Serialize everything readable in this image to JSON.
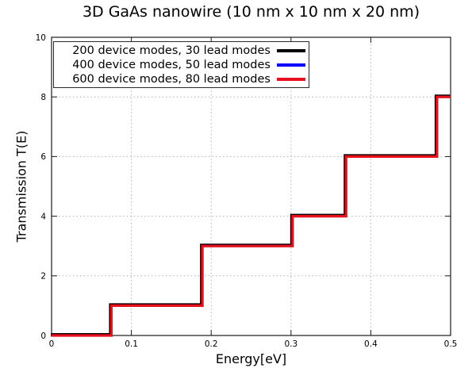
{
  "chart_data": {
    "type": "line",
    "line_shape": "step-staircase",
    "title": "3D GaAs nanowire (10 nm x 10 nm x 20 nm)",
    "xlabel": "Energy[eV]",
    "ylabel": "Transmission T(E)",
    "xlim": [
      0,
      0.5
    ],
    "ylim": [
      0,
      10
    ],
    "xticks": {
      "values": [
        0,
        0.1,
        0.2,
        0.3,
        0.4,
        0.5
      ],
      "labels": [
        "0",
        "0.1",
        "0.2",
        "0.3",
        "0.4",
        "0.5"
      ]
    },
    "yticks": {
      "values": [
        0,
        2,
        4,
        6,
        8,
        10
      ],
      "labels": [
        "0",
        "2",
        "4",
        "6",
        "8",
        "10"
      ]
    },
    "grid": "dotted, at major ticks, mirrored tick marks on all four borders",
    "legend_position": "top-left-inside",
    "overlap_note": "All three series coincide exactly on the same staircase; red is drawn on top.",
    "steps": [
      {
        "energy_eV": 0.075,
        "T_after": 1
      },
      {
        "energy_eV": 0.189,
        "T_after": 3
      },
      {
        "energy_eV": 0.302,
        "T_after": 4
      },
      {
        "energy_eV": 0.369,
        "T_after": 6
      },
      {
        "energy_eV": 0.483,
        "T_after": 8
      }
    ],
    "series": [
      {
        "name": "200 device modes, 30 lead modes",
        "color": "#000000",
        "x": [
          0,
          0.075,
          0.075,
          0.189,
          0.189,
          0.302,
          0.302,
          0.369,
          0.369,
          0.483,
          0.483,
          0.5
        ],
        "y": [
          0,
          0,
          1,
          1,
          3,
          3,
          4,
          4,
          6,
          6,
          8,
          8
        ]
      },
      {
        "name": "400 device modes, 50 lead modes",
        "color": "#0000ff",
        "x": [
          0,
          0.075,
          0.075,
          0.189,
          0.189,
          0.302,
          0.302,
          0.369,
          0.369,
          0.483,
          0.483,
          0.5
        ],
        "y": [
          0,
          0,
          1,
          1,
          3,
          3,
          4,
          4,
          6,
          6,
          8,
          8
        ]
      },
      {
        "name": "600 device modes, 80 lead modes",
        "color": "#e8101c",
        "x": [
          0,
          0.075,
          0.075,
          0.189,
          0.189,
          0.302,
          0.302,
          0.369,
          0.369,
          0.483,
          0.483,
          0.5
        ],
        "y": [
          0,
          0,
          1,
          1,
          3,
          3,
          4,
          4,
          6,
          6,
          8,
          8
        ]
      }
    ]
  }
}
